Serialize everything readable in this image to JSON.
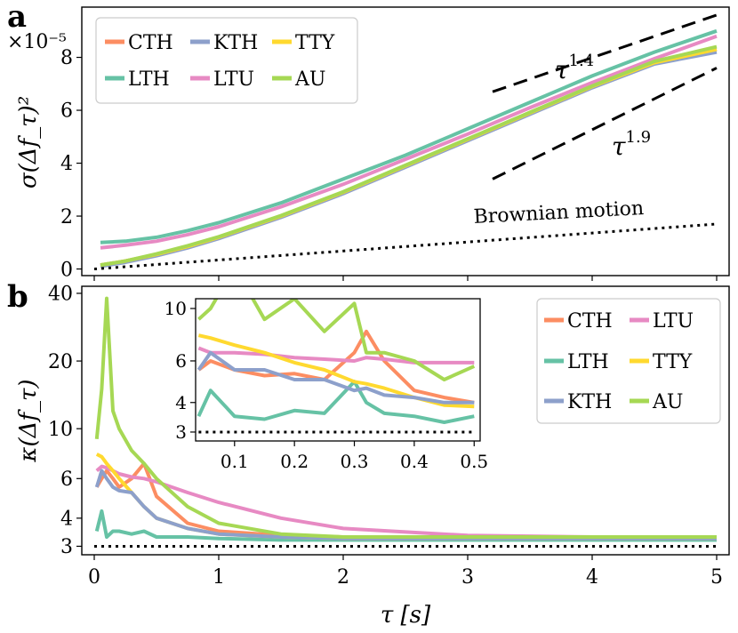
{
  "colors": {
    "CTH": "#fc8d62",
    "KTH": "#8da0cb",
    "TTY": "#ffd92f",
    "LTH": "#66c2a5",
    "LTU": "#e78ac3",
    "AU": "#a6d854"
  },
  "chart_data": [
    {
      "panel": "a",
      "type": "line",
      "scale_note": "×10⁻⁵",
      "xlabel": "",
      "ylabel": "σ(Δf_τ)²",
      "xlim": [
        -0.1,
        5.1
      ],
      "ylim": [
        -0.25,
        9.9
      ],
      "xticks": [
        0,
        1,
        2,
        3,
        4,
        5
      ],
      "yticks": [
        0,
        2,
        4,
        6,
        8
      ],
      "grid": false,
      "legend_placement": "upper-left",
      "x": [
        0.05,
        0.25,
        0.5,
        0.75,
        1.0,
        1.5,
        2.0,
        2.5,
        3.0,
        3.5,
        4.0,
        4.5,
        5.0
      ],
      "series": [
        {
          "name": "CTH",
          "values": [
            0.15,
            0.3,
            0.55,
            0.85,
            1.2,
            2.0,
            2.9,
            3.9,
            4.9,
            5.9,
            6.9,
            7.8,
            8.3
          ]
        },
        {
          "name": "KTH",
          "values": [
            0.1,
            0.25,
            0.5,
            0.8,
            1.15,
            1.95,
            2.85,
            3.85,
            4.85,
            5.85,
            6.85,
            7.75,
            8.2
          ]
        },
        {
          "name": "TTY",
          "values": [
            0.15,
            0.3,
            0.55,
            0.85,
            1.2,
            2.0,
            2.9,
            3.9,
            4.9,
            5.9,
            6.9,
            7.8,
            8.3
          ]
        },
        {
          "name": "LTH",
          "values": [
            1.0,
            1.05,
            1.2,
            1.45,
            1.75,
            2.5,
            3.4,
            4.3,
            5.3,
            6.3,
            7.3,
            8.2,
            9.0
          ]
        },
        {
          "name": "LTU",
          "values": [
            0.8,
            0.9,
            1.05,
            1.3,
            1.6,
            2.35,
            3.2,
            4.15,
            5.1,
            6.1,
            7.05,
            7.95,
            8.8
          ]
        },
        {
          "name": "AU",
          "values": [
            0.15,
            0.3,
            0.57,
            0.88,
            1.22,
            2.02,
            2.92,
            3.92,
            4.92,
            5.92,
            6.92,
            7.85,
            8.4
          ]
        }
      ],
      "reference_lines": [
        {
          "label": "τ^1.4",
          "exponent": "1.4"
        },
        {
          "label": "τ^1.9",
          "exponent": "1.9"
        },
        {
          "label": "Brownian motion",
          "x": [
            0.0,
            5.0
          ],
          "y": [
            0.0,
            1.7
          ]
        }
      ]
    },
    {
      "panel": "b",
      "type": "line",
      "xlabel": "τ [s]",
      "ylabel": "κ(Δf_τ)",
      "xlim": [
        -0.1,
        5.1
      ],
      "ylim": [
        2.75,
        43
      ],
      "yscale": "log",
      "xticks": [
        0,
        1,
        2,
        3,
        4,
        5
      ],
      "yticks": [
        3,
        4,
        6,
        10,
        20,
        40
      ],
      "grid": false,
      "legend_placement": "upper-right",
      "x": [
        0.02,
        0.06,
        0.1,
        0.15,
        0.2,
        0.3,
        0.4,
        0.5,
        0.75,
        1.0,
        1.5,
        2.0,
        3.0,
        4.0,
        5.0
      ],
      "series": [
        {
          "name": "CTH",
          "values": [
            5.5,
            6.0,
            6.5,
            6.0,
            5.5,
            6.0,
            7.0,
            5.0,
            3.8,
            3.5,
            3.35,
            3.3,
            3.25,
            3.25,
            3.25
          ]
        },
        {
          "name": "LTU",
          "values": [
            6.5,
            6.8,
            6.7,
            6.5,
            6.3,
            6.1,
            6.0,
            5.8,
            5.2,
            4.7,
            4.0,
            3.6,
            3.35,
            3.3,
            3.3
          ]
        },
        {
          "name": "LTH",
          "values": [
            3.5,
            4.3,
            3.3,
            3.5,
            3.5,
            3.4,
            3.5,
            3.3,
            3.3,
            3.25,
            3.2,
            3.2,
            3.2,
            3.2,
            3.2
          ]
        },
        {
          "name": "TTY",
          "values": [
            7.7,
            7.5,
            7.0,
            6.5,
            6.0,
            5.2,
            4.5,
            4.0,
            3.6,
            3.4,
            3.3,
            3.25,
            3.25,
            3.25,
            3.25
          ]
        },
        {
          "name": "KTH",
          "values": [
            5.5,
            6.5,
            6.0,
            5.5,
            5.3,
            5.2,
            4.5,
            4.0,
            3.6,
            3.4,
            3.3,
            3.25,
            3.25,
            3.25,
            3.25
          ]
        },
        {
          "name": "AU",
          "values": [
            9.0,
            15.0,
            38.0,
            12.0,
            10.0,
            8.0,
            7.0,
            6.0,
            4.5,
            3.8,
            3.4,
            3.3,
            3.3,
            3.3,
            3.3
          ]
        }
      ],
      "reference_lines": [
        {
          "y": 3
        }
      ],
      "inset": {
        "xlim": [
          0.035,
          0.51
        ],
        "ylim": [
          2.75,
          11
        ],
        "yscale": "log",
        "xticks": [
          0.1,
          0.2,
          0.3,
          0.4,
          0.5
        ],
        "yticks": [
          3,
          4,
          6,
          10
        ],
        "x": [
          0.04,
          0.06,
          0.1,
          0.15,
          0.2,
          0.25,
          0.3,
          0.32,
          0.35,
          0.4,
          0.45,
          0.5
        ],
        "series": [
          {
            "name": "CTH",
            "values": [
              5.5,
              6.0,
              5.5,
              5.2,
              5.3,
              5.0,
              6.5,
              8.0,
              6.0,
              4.5,
              4.2,
              4.0
            ]
          },
          {
            "name": "LTU",
            "values": [
              6.8,
              6.5,
              6.5,
              6.4,
              6.2,
              6.1,
              6.0,
              6.2,
              6.1,
              5.9,
              5.9,
              5.9
            ]
          },
          {
            "name": "LTH",
            "values": [
              3.5,
              4.5,
              3.5,
              3.4,
              3.7,
              3.6,
              4.9,
              4.0,
              3.6,
              3.5,
              3.3,
              3.5
            ]
          },
          {
            "name": "TTY",
            "values": [
              7.7,
              7.5,
              7.0,
              6.5,
              5.9,
              5.5,
              4.9,
              4.8,
              4.6,
              4.2,
              3.9,
              3.85
            ]
          },
          {
            "name": "KTH",
            "values": [
              5.5,
              6.5,
              5.5,
              5.5,
              5.0,
              5.0,
              4.5,
              4.6,
              4.3,
              4.2,
              4.0,
              4.0
            ]
          },
          {
            "name": "AU",
            "values": [
              9.0,
              10.0,
              15.0,
              9.0,
              11.0,
              8.0,
              10.5,
              6.5,
              6.5,
              6.0,
              5.0,
              5.7
            ]
          }
        ]
      }
    }
  ]
}
